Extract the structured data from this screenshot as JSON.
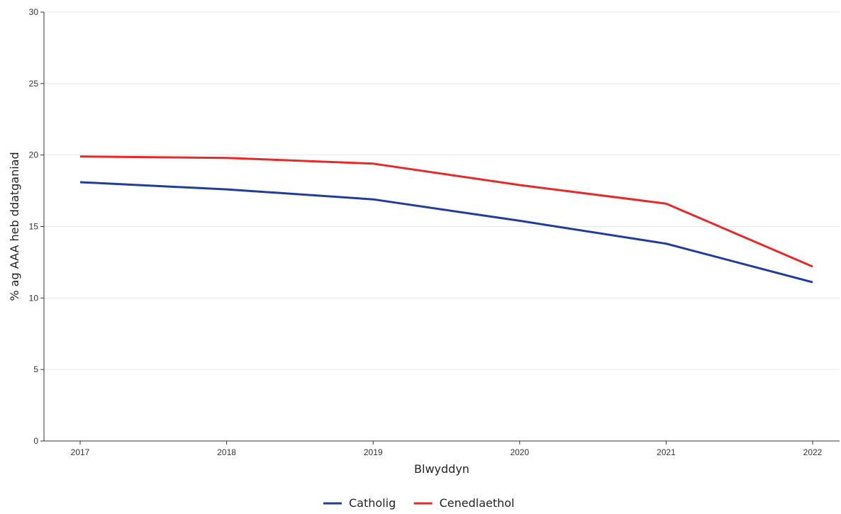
{
  "chart_data": {
    "type": "line",
    "title": "",
    "xlabel": "Blwyddyn",
    "ylabel": "% ag AAA heb ddatganiad",
    "x": [
      2017,
      2018,
      2019,
      2020,
      2021,
      2022
    ],
    "x_tick_labels": [
      "2017",
      "2018",
      "2019",
      "2020",
      "2021",
      "2022"
    ],
    "ylim": [
      0,
      30
    ],
    "y_ticks": [
      0,
      5,
      10,
      15,
      20,
      25,
      30
    ],
    "y_tick_labels": [
      "0",
      "5",
      "10",
      "15",
      "20",
      "25",
      "30"
    ],
    "grid": true,
    "legend_position": "bottom",
    "series": [
      {
        "name": "Catholig",
        "color": "#1f3d99",
        "values": [
          18.1,
          17.6,
          16.9,
          15.4,
          13.8,
          11.1
        ]
      },
      {
        "name": "Cenedlaethol",
        "color": "#e8292a",
        "values": [
          19.9,
          19.8,
          19.4,
          17.9,
          16.6,
          12.2
        ]
      }
    ]
  }
}
